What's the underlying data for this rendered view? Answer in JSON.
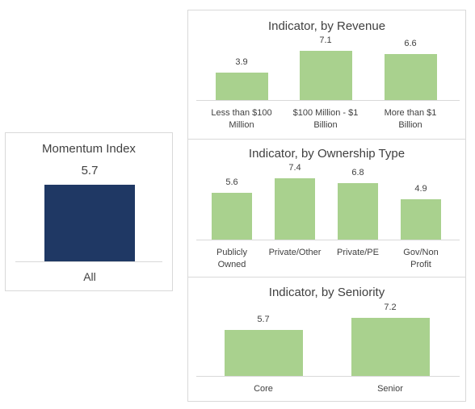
{
  "chart_data": [
    {
      "type": "bar",
      "title": "Momentum Index",
      "categories": [
        "All"
      ],
      "values": [
        5.7
      ],
      "color": "#1f3864"
    },
    {
      "type": "bar",
      "title": "Indicator, by Revenue",
      "categories": [
        "Less than $100 Million",
        "$100 Million - $1 Billion",
        "More than $1 Billion"
      ],
      "values": [
        3.9,
        7.1,
        6.6
      ],
      "color": "#a9d18e"
    },
    {
      "type": "bar",
      "title": "Indicator, by Ownership Type",
      "categories": [
        "Publicly Owned",
        "Private/Other",
        "Private/PE",
        "Gov/Non Profit"
      ],
      "values": [
        5.6,
        7.4,
        6.8,
        4.9
      ],
      "color": "#a9d18e"
    },
    {
      "type": "bar",
      "title": "Indicator, by Seniority",
      "categories": [
        "Core",
        "Senior"
      ],
      "values": [
        5.7,
        7.2
      ],
      "color": "#a9d18e"
    }
  ]
}
